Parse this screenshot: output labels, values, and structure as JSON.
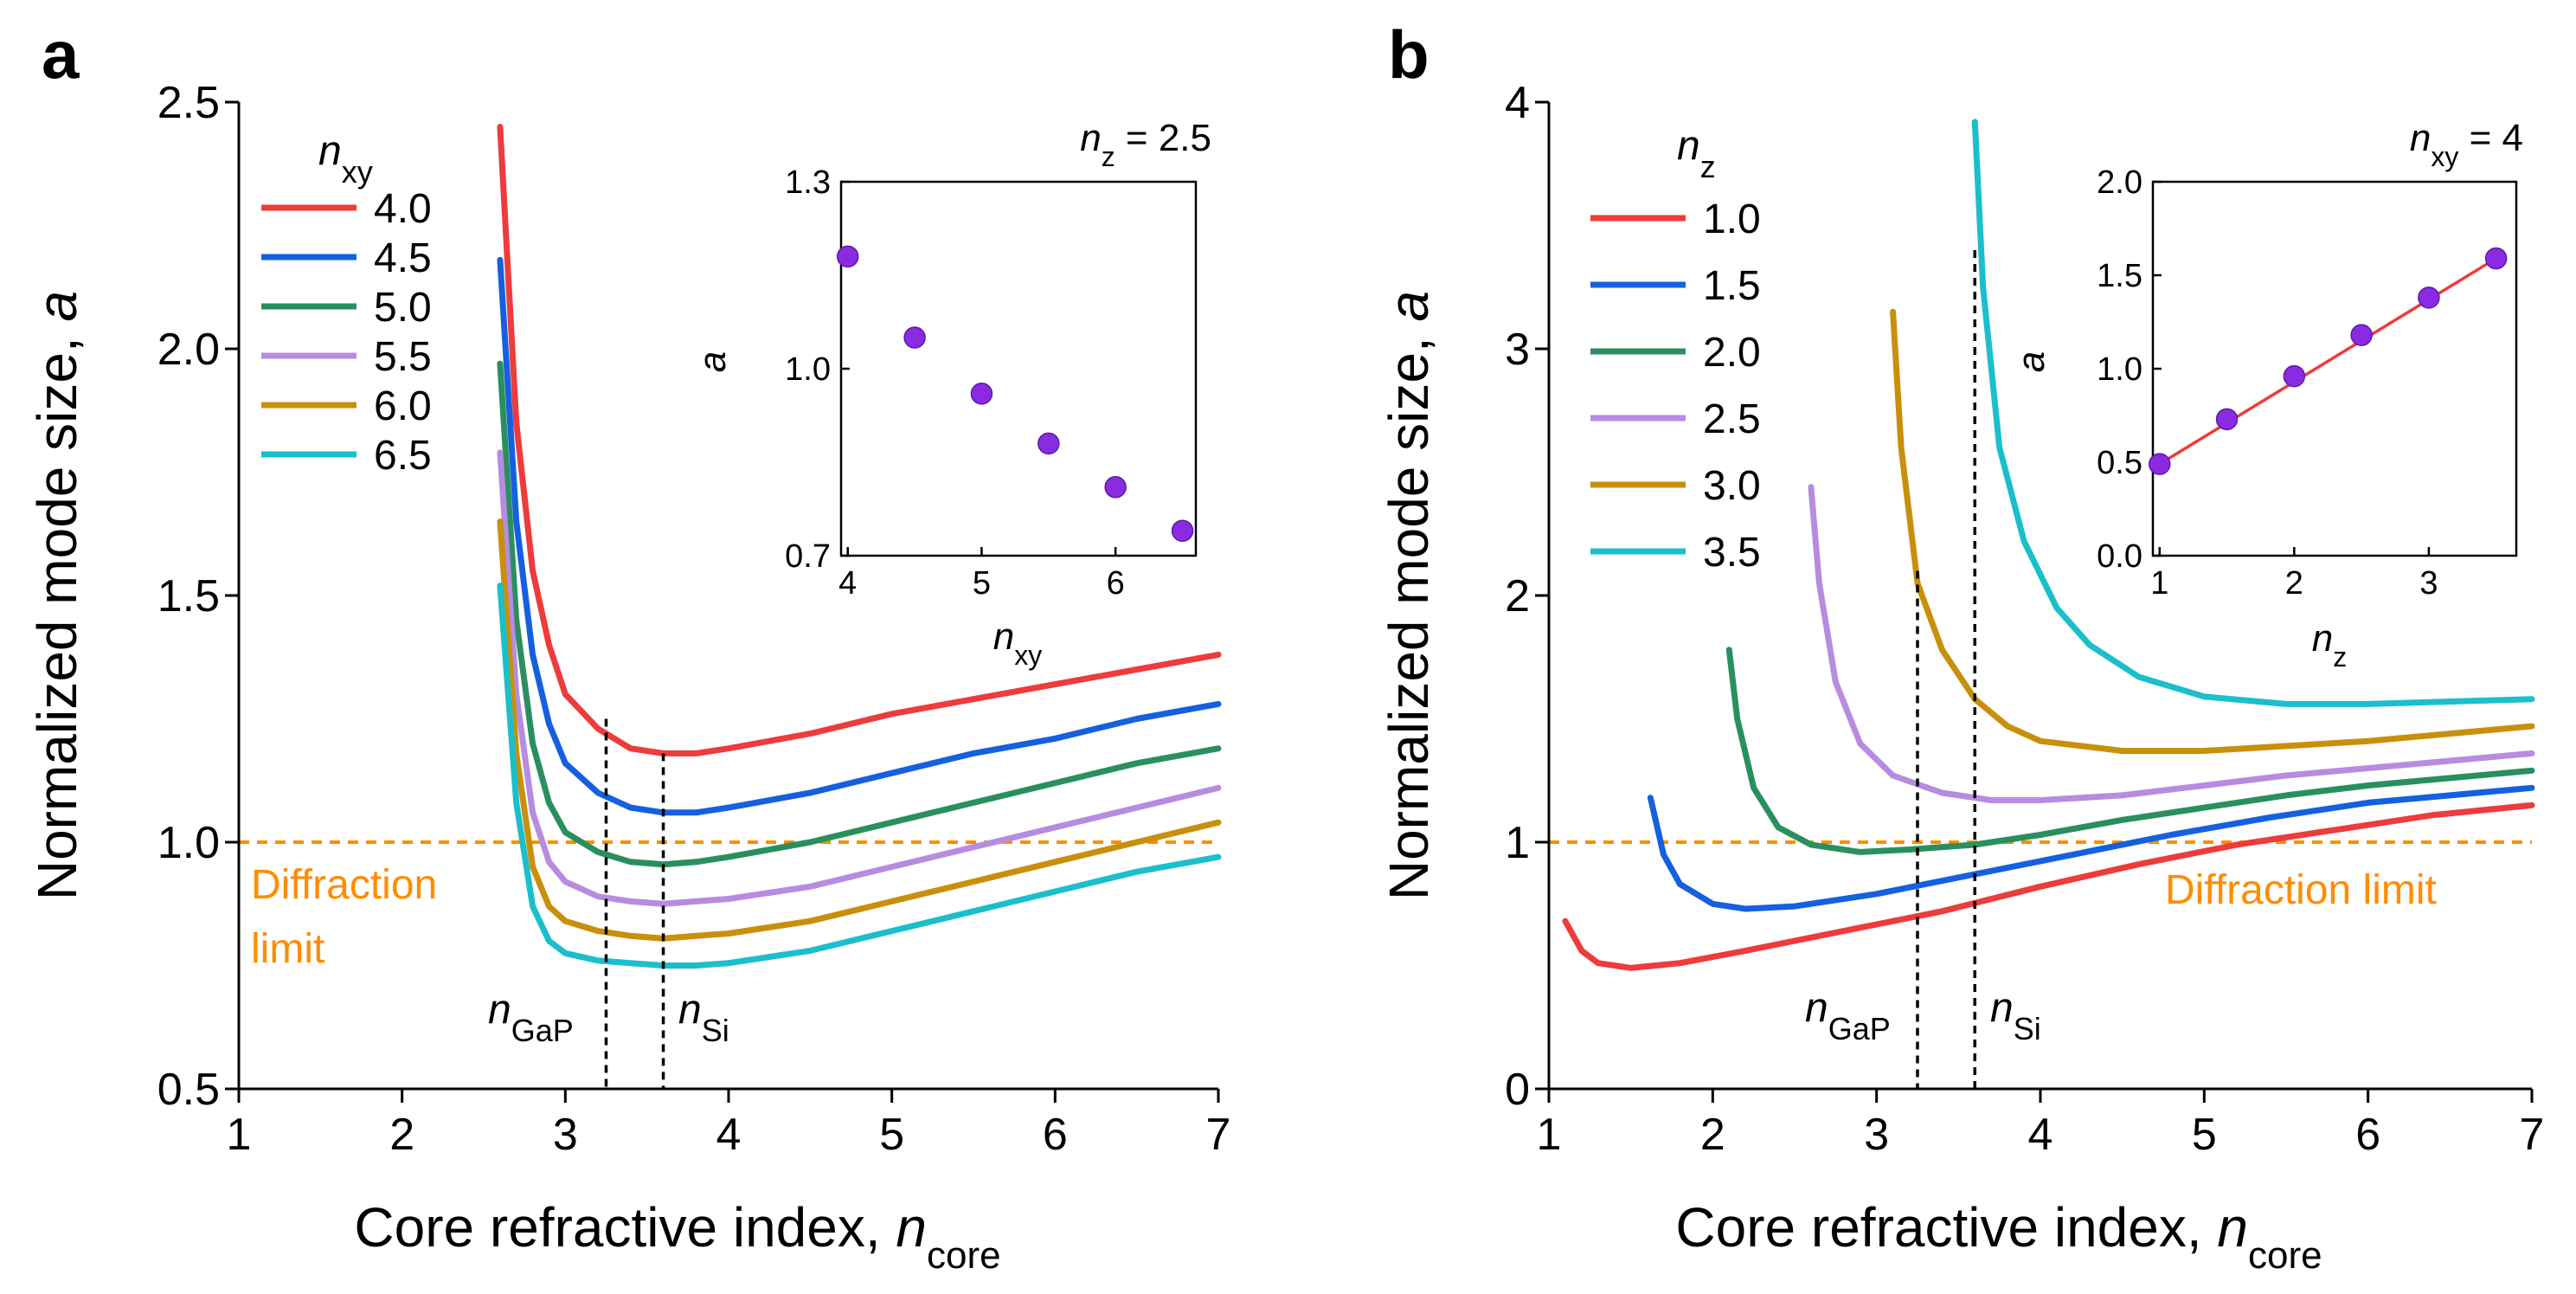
{
  "chart_data": [
    {
      "panel": "a",
      "type": "line",
      "xlabel": "Core refractive index, ",
      "xlabel_italic": "n",
      "xlabel_sub": "core",
      "ylabel": "Normalized mode size, ",
      "ylabel_italic": "a",
      "xlim": [
        1,
        7
      ],
      "ylim": [
        0.5,
        2.5
      ],
      "xticks": [
        "1",
        "2",
        "3",
        "4",
        "5",
        "6",
        "7"
      ],
      "yticks": [
        "0.5",
        "1.0",
        "1.5",
        "2.0",
        "2.5"
      ],
      "ytick_values": [
        0.5,
        1.0,
        1.5,
        2.0,
        2.5
      ],
      "legend_title": "n",
      "legend_title_sub": "xy",
      "series": [
        {
          "name": "4.0",
          "color": "#ee3b3b",
          "x": [
            2.6,
            2.7,
            2.8,
            2.9,
            3.0,
            3.2,
            3.4,
            3.6,
            3.8,
            4.0,
            4.5,
            5.0,
            5.5,
            6.0,
            6.5,
            7.0
          ],
          "y": [
            2.45,
            1.85,
            1.55,
            1.4,
            1.3,
            1.23,
            1.19,
            1.18,
            1.18,
            1.19,
            1.22,
            1.26,
            1.29,
            1.32,
            1.35,
            1.38
          ]
        },
        {
          "name": "4.5",
          "color": "#1560e0",
          "x": [
            2.6,
            2.7,
            2.8,
            2.9,
            3.0,
            3.2,
            3.4,
            3.6,
            3.8,
            4.0,
            4.5,
            5.0,
            5.5,
            6.0,
            6.5,
            7.0
          ],
          "y": [
            2.18,
            1.65,
            1.38,
            1.24,
            1.16,
            1.1,
            1.07,
            1.06,
            1.06,
            1.07,
            1.1,
            1.14,
            1.18,
            1.21,
            1.25,
            1.28
          ]
        },
        {
          "name": "5.0",
          "color": "#2a8f5f",
          "x": [
            2.6,
            2.7,
            2.8,
            2.9,
            3.0,
            3.2,
            3.4,
            3.6,
            3.8,
            4.0,
            4.5,
            5.0,
            5.5,
            6.0,
            6.5,
            7.0
          ],
          "y": [
            1.97,
            1.45,
            1.2,
            1.08,
            1.02,
            0.98,
            0.96,
            0.955,
            0.96,
            0.97,
            1.0,
            1.04,
            1.08,
            1.12,
            1.16,
            1.19
          ]
        },
        {
          "name": "5.5",
          "color": "#b78ce0",
          "x": [
            2.6,
            2.7,
            2.8,
            2.9,
            3.0,
            3.2,
            3.4,
            3.6,
            3.8,
            4.0,
            4.5,
            5.0,
            5.5,
            6.0,
            6.5,
            7.0
          ],
          "y": [
            1.79,
            1.3,
            1.06,
            0.96,
            0.92,
            0.89,
            0.88,
            0.875,
            0.88,
            0.885,
            0.91,
            0.95,
            0.99,
            1.03,
            1.07,
            1.11
          ]
        },
        {
          "name": "6.0",
          "color": "#c8900a",
          "x": [
            2.6,
            2.7,
            2.8,
            2.9,
            3.0,
            3.2,
            3.4,
            3.6,
            3.8,
            4.0,
            4.5,
            5.0,
            5.5,
            6.0,
            6.5,
            7.0
          ],
          "y": [
            1.65,
            1.18,
            0.95,
            0.87,
            0.84,
            0.82,
            0.81,
            0.805,
            0.81,
            0.815,
            0.84,
            0.88,
            0.92,
            0.96,
            1.0,
            1.04
          ]
        },
        {
          "name": "6.5",
          "color": "#1bbfcc",
          "x": [
            2.6,
            2.7,
            2.8,
            2.9,
            3.0,
            3.2,
            3.4,
            3.6,
            3.8,
            4.0,
            4.5,
            5.0,
            5.5,
            6.0,
            6.5,
            7.0
          ],
          "y": [
            1.52,
            1.08,
            0.87,
            0.8,
            0.775,
            0.76,
            0.755,
            0.75,
            0.75,
            0.755,
            0.78,
            0.82,
            0.86,
            0.9,
            0.94,
            0.97
          ]
        }
      ],
      "diffraction_limit": {
        "y": 1.0,
        "label_line1": "Diffraction",
        "label_line2": "limit",
        "color": "#ff8c00"
      },
      "markers": [
        {
          "x": 3.25,
          "y_top": 1.25,
          "label": "n",
          "sub": "GaP"
        },
        {
          "x": 3.6,
          "y_top": 1.18,
          "label": "n",
          "sub": "Si"
        }
      ],
      "inset": {
        "type": "scatter",
        "corner_label": "n",
        "corner_label_sub": "z",
        "corner_label_value": " = 2.5",
        "xlabel": "n",
        "xlabel_sub": "xy",
        "ylabel": "a",
        "xlim": [
          3.95,
          6.6
        ],
        "ylim": [
          0.7,
          1.3
        ],
        "xticks": [
          "4",
          "5",
          "6"
        ],
        "xtick_values": [
          4,
          5,
          6
        ],
        "yticks": [
          "0.7",
          "1.0",
          "1.3"
        ],
        "ytick_values": [
          0.7,
          1.0,
          1.3
        ],
        "marker_color": "#8a2be2",
        "x": [
          4.0,
          4.5,
          5.0,
          5.5,
          6.0,
          6.5
        ],
        "y": [
          1.18,
          1.05,
          0.96,
          0.88,
          0.81,
          0.74
        ]
      }
    },
    {
      "panel": "b",
      "type": "line",
      "xlabel": "Core refractive index, ",
      "xlabel_italic": "n",
      "xlabel_sub": "core",
      "ylabel": "Normalized mode size, ",
      "ylabel_italic": "a",
      "xlim": [
        1,
        7
      ],
      "ylim": [
        0,
        4
      ],
      "xticks": [
        "1",
        "2",
        "3",
        "4",
        "5",
        "6",
        "7"
      ],
      "yticks": [
        "0",
        "1",
        "2",
        "3",
        "4"
      ],
      "ytick_values": [
        0,
        1,
        2,
        3,
        4
      ],
      "legend_title": "n",
      "legend_title_sub": "z",
      "series": [
        {
          "name": "1.0",
          "color": "#ee3b3b",
          "x": [
            1.1,
            1.2,
            1.3,
            1.5,
            1.8,
            2.2,
            2.8,
            3.4,
            4.0,
            4.6,
            5.2,
            5.8,
            6.4,
            7.0
          ],
          "y": [
            0.68,
            0.56,
            0.51,
            0.49,
            0.51,
            0.56,
            0.64,
            0.72,
            0.82,
            0.91,
            0.99,
            1.05,
            1.11,
            1.15
          ]
        },
        {
          "name": "1.5",
          "color": "#1560e0",
          "x": [
            1.62,
            1.7,
            1.8,
            2.0,
            2.2,
            2.5,
            3.0,
            3.6,
            4.2,
            4.8,
            5.4,
            6.0,
            6.5,
            7.0
          ],
          "y": [
            1.18,
            0.95,
            0.83,
            0.75,
            0.73,
            0.74,
            0.79,
            0.87,
            0.95,
            1.03,
            1.1,
            1.16,
            1.19,
            1.22
          ]
        },
        {
          "name": "2.0",
          "color": "#2a8f5f",
          "x": [
            2.1,
            2.15,
            2.25,
            2.4,
            2.6,
            2.9,
            3.2,
            3.6,
            4.0,
            4.5,
            5.0,
            5.5,
            6.0,
            6.5,
            7.0
          ],
          "y": [
            1.78,
            1.5,
            1.22,
            1.06,
            0.99,
            0.96,
            0.97,
            0.99,
            1.03,
            1.09,
            1.14,
            1.19,
            1.23,
            1.26,
            1.29
          ]
        },
        {
          "name": "2.5",
          "color": "#b78ce0",
          "x": [
            2.6,
            2.65,
            2.75,
            2.9,
            3.1,
            3.4,
            3.7,
            4.0,
            4.5,
            5.0,
            5.5,
            6.0,
            6.5,
            7.0
          ],
          "y": [
            2.44,
            2.05,
            1.65,
            1.4,
            1.27,
            1.2,
            1.17,
            1.17,
            1.19,
            1.23,
            1.27,
            1.3,
            1.33,
            1.36
          ]
        },
        {
          "name": "3.0",
          "color": "#c8900a",
          "x": [
            3.1,
            3.15,
            3.25,
            3.4,
            3.6,
            3.8,
            4.0,
            4.5,
            5.0,
            5.5,
            6.0,
            6.5,
            7.0
          ],
          "y": [
            3.15,
            2.6,
            2.05,
            1.78,
            1.58,
            1.47,
            1.41,
            1.37,
            1.37,
            1.39,
            1.41,
            1.44,
            1.47
          ]
        },
        {
          "name": "3.5",
          "color": "#1bbfcc",
          "x": [
            3.6,
            3.65,
            3.75,
            3.9,
            4.1,
            4.3,
            4.6,
            5.0,
            5.5,
            6.0,
            6.5,
            7.0
          ],
          "y": [
            3.92,
            3.25,
            2.6,
            2.22,
            1.95,
            1.8,
            1.67,
            1.59,
            1.56,
            1.56,
            1.57,
            1.58
          ]
        }
      ],
      "diffraction_limit": {
        "y": 1.0,
        "label": "Diffraction limit",
        "color": "#ff8c00"
      },
      "markers": [
        {
          "x": 3.25,
          "y_top": 2.1,
          "label": "n",
          "sub": "GaP"
        },
        {
          "x": 3.6,
          "y_top": 3.4,
          "label": "n",
          "sub": "Si"
        }
      ],
      "inset": {
        "type": "scatter",
        "corner_label": "n",
        "corner_label_sub": "xy",
        "corner_label_value": " = 4",
        "xlabel": "n",
        "xlabel_sub": "z",
        "ylabel": "a",
        "xlim": [
          0.95,
          3.65
        ],
        "ylim": [
          0,
          2.0
        ],
        "xticks": [
          "1",
          "2",
          "3"
        ],
        "xtick_values": [
          1,
          2,
          3
        ],
        "yticks": [
          "0.0",
          "0.5",
          "1.0",
          "1.5",
          "2.0"
        ],
        "ytick_values": [
          0,
          0.5,
          1.0,
          1.5,
          2.0
        ],
        "marker_color": "#8a2be2",
        "fit_color": "#ee3b3b",
        "fit": {
          "x": [
            1.0,
            3.5
          ],
          "y": [
            0.49,
            1.59
          ]
        },
        "x": [
          1.0,
          1.5,
          2.0,
          2.5,
          3.0,
          3.5
        ],
        "y": [
          0.49,
          0.73,
          0.96,
          1.18,
          1.38,
          1.59
        ]
      }
    }
  ]
}
